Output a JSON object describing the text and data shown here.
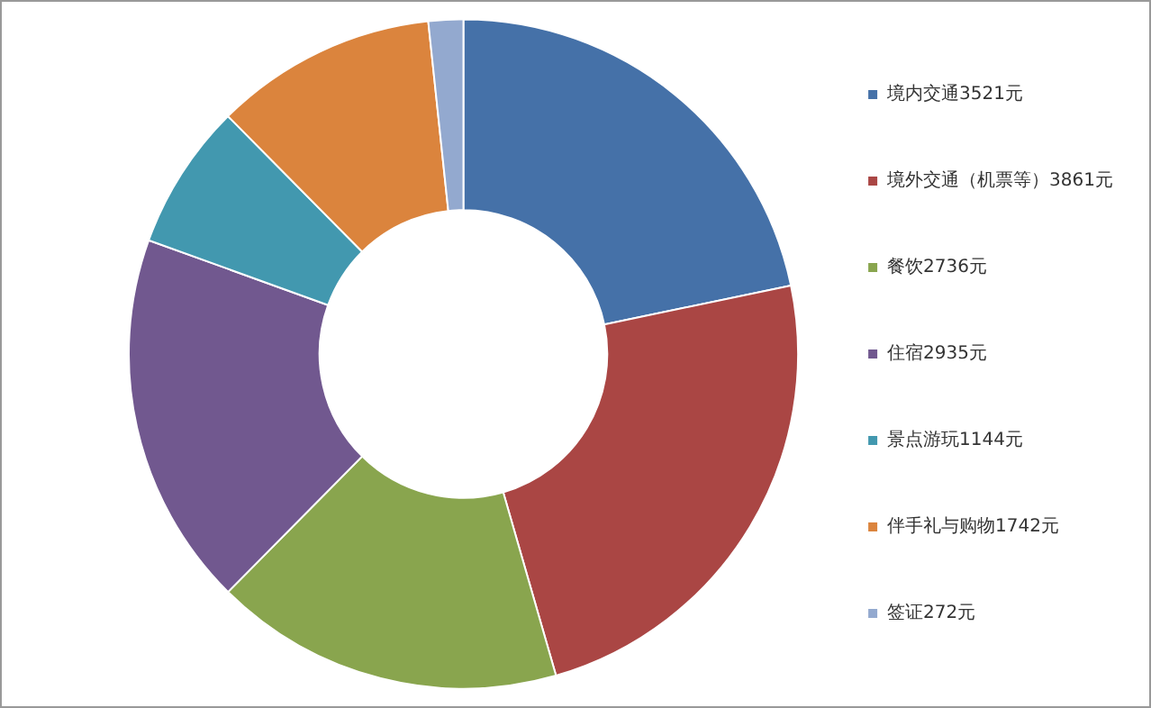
{
  "chart_data": {
    "type": "donut",
    "categories": [
      "境内交通3521元",
      "境外交通（机票等）3861元",
      "餐饮2736元",
      "住宿2935元",
      "景点游玩1144元",
      "伴手礼与购物1742元",
      "签证272元"
    ],
    "values": [
      3521,
      3861,
      2736,
      2935,
      1144,
      1742,
      272
    ],
    "colors": [
      "#4571a8",
      "#aa4644",
      "#89a54e",
      "#71588f",
      "#4298af",
      "#db843d",
      "#93a9cf"
    ],
    "legend": "right"
  }
}
